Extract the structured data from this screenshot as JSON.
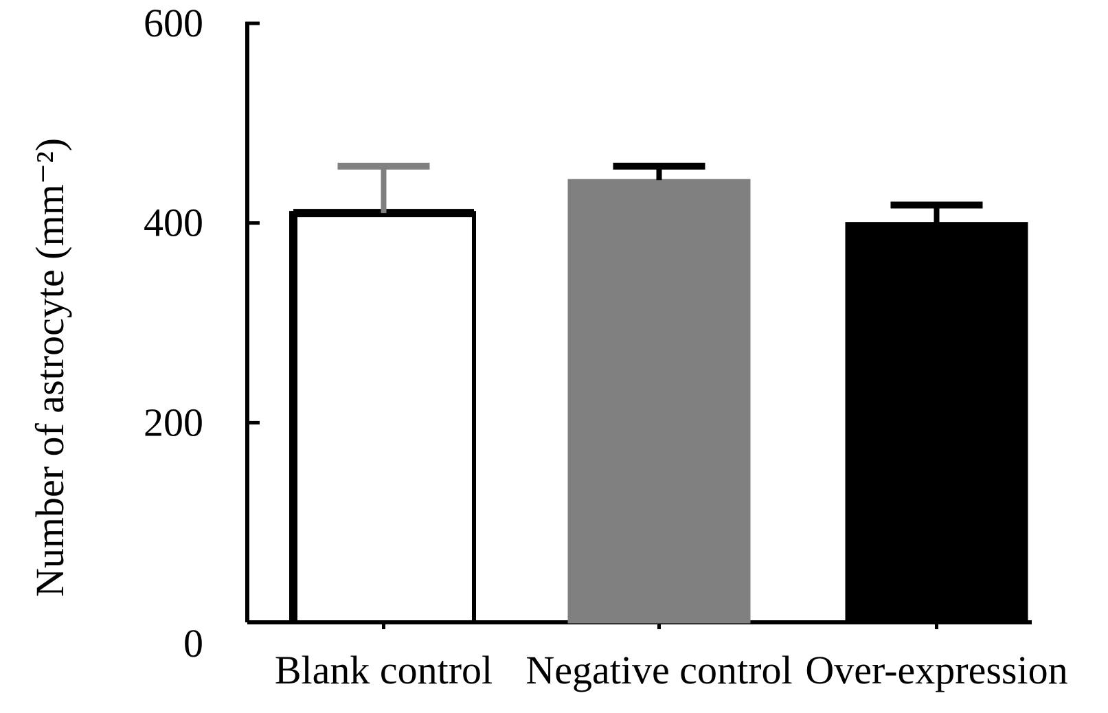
{
  "chart_data": {
    "type": "bar",
    "title": "",
    "xlabel": "",
    "ylabel": "Number of astrocyte (mm⁻²)",
    "ylim": [
      0,
      600
    ],
    "yticks": [
      0,
      200,
      400,
      600
    ],
    "grid": false,
    "categories": [
      "Blank control",
      "Negative control",
      "Over-expression"
    ],
    "values": [
      410,
      443,
      400
    ],
    "errors": [
      47,
      14,
      18
    ],
    "colors": {
      "fills": [
        "#ffffff",
        "#808080",
        "#000000"
      ],
      "outlines": [
        "#000000",
        "#808080",
        "#000000"
      ],
      "errorbars": [
        "#808080",
        "#000000",
        "#000000"
      ],
      "axis": "#000000"
    }
  }
}
